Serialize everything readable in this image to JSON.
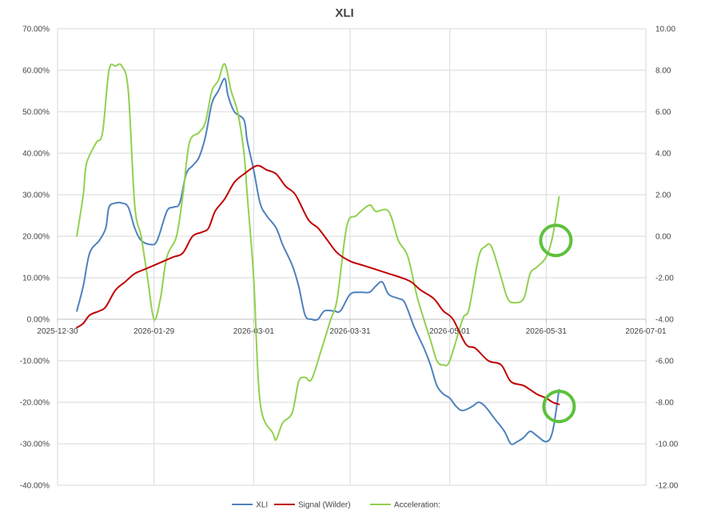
{
  "chart_data": {
    "type": "line",
    "title": "XLI",
    "colors": {
      "XLI": "#4f81bd",
      "Signal (Wilder)": "#c00000",
      "Acceleration:": "#92d050",
      "highlight": "#5cc13c",
      "grid": "#d9d9d9"
    },
    "x_axis": {
      "type": "date",
      "range": [
        "2025-12-30",
        "2026-07-01"
      ],
      "ticks": [
        "2025-12-30",
        "2026-01-29",
        "2026-03-01",
        "2026-03-31",
        "2026-05-01",
        "2026-05-31",
        "2026-07-01"
      ]
    },
    "y_left": {
      "range": [
        -0.4,
        0.7
      ],
      "ticks": [
        "70.00%",
        "60.00%",
        "50.00%",
        "40.00%",
        "30.00%",
        "20.00%",
        "10.00%",
        "0.00%",
        "-10.00%",
        "-20.00%",
        "-30.00%",
        "-40.00%"
      ]
    },
    "y_right": {
      "range": [
        -12,
        10
      ],
      "ticks": [
        "10.00",
        "8.00",
        "6.00",
        "4.00",
        "2.00",
        "0.00",
        "-2.00",
        "-4.00",
        "-6.00",
        "-8.00",
        "-10.00",
        "-12.00"
      ]
    },
    "series": [
      {
        "name": "XLI",
        "axis": "left",
        "points": [
          [
            "2026-01-05",
            0.02
          ],
          [
            "2026-01-07",
            0.08
          ],
          [
            "2026-01-09",
            0.16
          ],
          [
            "2026-01-12",
            0.19
          ],
          [
            "2026-01-14",
            0.22
          ],
          [
            "2026-01-15",
            0.27
          ],
          [
            "2026-01-17",
            0.28
          ],
          [
            "2026-01-19",
            0.28
          ],
          [
            "2026-01-21",
            0.27
          ],
          [
            "2026-01-23",
            0.22
          ],
          [
            "2026-01-25",
            0.19
          ],
          [
            "2026-01-28",
            0.18
          ],
          [
            "2026-01-30",
            0.19
          ],
          [
            "2026-02-02",
            0.26
          ],
          [
            "2026-02-04",
            0.27
          ],
          [
            "2026-02-06",
            0.28
          ],
          [
            "2026-02-08",
            0.35
          ],
          [
            "2026-02-10",
            0.37
          ],
          [
            "2026-02-12",
            0.39
          ],
          [
            "2026-02-14",
            0.44
          ],
          [
            "2026-02-16",
            0.52
          ],
          [
            "2026-02-18",
            0.55
          ],
          [
            "2026-02-20",
            0.58
          ],
          [
            "2026-02-21",
            0.54
          ],
          [
            "2026-02-23",
            0.5
          ],
          [
            "2026-02-26",
            0.48
          ],
          [
            "2026-02-27",
            0.43
          ],
          [
            "2026-03-01",
            0.36
          ],
          [
            "2026-03-03",
            0.28
          ],
          [
            "2026-03-05",
            0.25
          ],
          [
            "2026-03-08",
            0.22
          ],
          [
            "2026-03-10",
            0.18
          ],
          [
            "2026-03-13",
            0.13
          ],
          [
            "2026-03-15",
            0.08
          ],
          [
            "2026-03-17",
            0.01
          ],
          [
            "2026-03-19",
            0.0
          ],
          [
            "2026-03-21",
            0.0
          ],
          [
            "2026-03-23",
            0.02
          ],
          [
            "2026-03-26",
            0.02
          ],
          [
            "2026-03-28",
            0.02
          ],
          [
            "2026-03-31",
            0.06
          ],
          [
            "2026-04-03",
            0.065
          ],
          [
            "2026-04-06",
            0.065
          ],
          [
            "2026-04-08",
            0.08
          ],
          [
            "2026-04-10",
            0.09
          ],
          [
            "2026-04-12",
            0.06
          ],
          [
            "2026-04-15",
            0.05
          ],
          [
            "2026-04-17",
            0.04
          ],
          [
            "2026-04-20",
            -0.02
          ],
          [
            "2026-04-23",
            -0.07
          ],
          [
            "2026-04-25",
            -0.11
          ],
          [
            "2026-04-27",
            -0.16
          ],
          [
            "2026-04-29",
            -0.18
          ],
          [
            "2026-05-01",
            -0.19
          ],
          [
            "2026-05-03",
            -0.21
          ],
          [
            "2026-05-05",
            -0.22
          ],
          [
            "2026-05-08",
            -0.21
          ],
          [
            "2026-05-10",
            -0.2
          ],
          [
            "2026-05-12",
            -0.21
          ],
          [
            "2026-05-15",
            -0.24
          ],
          [
            "2026-05-18",
            -0.27
          ],
          [
            "2026-05-20",
            -0.3
          ],
          [
            "2026-05-22",
            -0.295
          ],
          [
            "2026-05-24",
            -0.285
          ],
          [
            "2026-05-26",
            -0.27
          ],
          [
            "2026-05-28",
            -0.28
          ],
          [
            "2026-05-31",
            -0.295
          ],
          [
            "2026-06-02",
            -0.27
          ],
          [
            "2026-06-04",
            -0.17
          ]
        ]
      },
      {
        "name": "Signal (Wilder)",
        "axis": "left",
        "points": [
          [
            "2026-01-05",
            -0.02
          ],
          [
            "2026-01-07",
            -0.01
          ],
          [
            "2026-01-09",
            0.01
          ],
          [
            "2026-01-12",
            0.02
          ],
          [
            "2026-01-14",
            0.03
          ],
          [
            "2026-01-17",
            0.07
          ],
          [
            "2026-01-20",
            0.09
          ],
          [
            "2026-01-23",
            0.11
          ],
          [
            "2026-01-26",
            0.12
          ],
          [
            "2026-01-29",
            0.13
          ],
          [
            "2026-02-01",
            0.14
          ],
          [
            "2026-02-04",
            0.15
          ],
          [
            "2026-02-07",
            0.16
          ],
          [
            "2026-02-10",
            0.2
          ],
          [
            "2026-02-13",
            0.21
          ],
          [
            "2026-02-15",
            0.22
          ],
          [
            "2026-02-17",
            0.26
          ],
          [
            "2026-02-20",
            0.29
          ],
          [
            "2026-02-23",
            0.33
          ],
          [
            "2026-02-26",
            0.35
          ],
          [
            "2026-03-02",
            0.37
          ],
          [
            "2026-03-05",
            0.36
          ],
          [
            "2026-03-08",
            0.35
          ],
          [
            "2026-03-11",
            0.32
          ],
          [
            "2026-03-14",
            0.3
          ],
          [
            "2026-03-18",
            0.24
          ],
          [
            "2026-03-21",
            0.22
          ],
          [
            "2026-03-24",
            0.19
          ],
          [
            "2026-03-27",
            0.16
          ],
          [
            "2026-03-31",
            0.14
          ],
          [
            "2026-04-04",
            0.13
          ],
          [
            "2026-04-08",
            0.12
          ],
          [
            "2026-04-12",
            0.11
          ],
          [
            "2026-04-16",
            0.1
          ],
          [
            "2026-04-19",
            0.09
          ],
          [
            "2026-04-22",
            0.07
          ],
          [
            "2026-04-26",
            0.05
          ],
          [
            "2026-04-29",
            0.02
          ],
          [
            "2026-05-02",
            0.0
          ],
          [
            "2026-05-06",
            -0.06
          ],
          [
            "2026-05-09",
            -0.07
          ],
          [
            "2026-05-13",
            -0.1
          ],
          [
            "2026-05-17",
            -0.11
          ],
          [
            "2026-05-20",
            -0.15
          ],
          [
            "2026-05-24",
            -0.16
          ],
          [
            "2026-05-28",
            -0.18
          ],
          [
            "2026-05-31",
            -0.19
          ],
          [
            "2026-06-02",
            -0.2
          ],
          [
            "2026-06-04",
            -0.205
          ]
        ]
      },
      {
        "name": "Acceleration:",
        "axis": "right",
        "points": [
          [
            "2026-01-05",
            0.0
          ],
          [
            "2026-01-07",
            2.0
          ],
          [
            "2026-01-08",
            3.5
          ],
          [
            "2026-01-11",
            4.5
          ],
          [
            "2026-01-13",
            5.0
          ],
          [
            "2026-01-15",
            8.0
          ],
          [
            "2026-01-17",
            8.2
          ],
          [
            "2026-01-19",
            8.2
          ],
          [
            "2026-01-21",
            7.0
          ],
          [
            "2026-01-23",
            1.5
          ],
          [
            "2026-01-25",
            0.0
          ],
          [
            "2026-01-27",
            -2.0
          ],
          [
            "2026-01-29",
            -4.0
          ],
          [
            "2026-01-31",
            -3.0
          ],
          [
            "2026-02-02",
            -1.0
          ],
          [
            "2026-02-05",
            0.0
          ],
          [
            "2026-02-07",
            2.0
          ],
          [
            "2026-02-09",
            4.5
          ],
          [
            "2026-02-12",
            5.0
          ],
          [
            "2026-02-14",
            5.5
          ],
          [
            "2026-02-16",
            7.0
          ],
          [
            "2026-02-18",
            7.5
          ],
          [
            "2026-02-20",
            8.3
          ],
          [
            "2026-02-22",
            7.0
          ],
          [
            "2026-02-24",
            6.0
          ],
          [
            "2026-02-26",
            4.0
          ],
          [
            "2026-02-27",
            2.0
          ],
          [
            "2026-03-01",
            -2.0
          ],
          [
            "2026-03-03",
            -8.0
          ],
          [
            "2026-03-07",
            -9.5
          ],
          [
            "2026-03-08",
            -9.8
          ],
          [
            "2026-03-10",
            -9.0
          ],
          [
            "2026-03-13",
            -8.5
          ],
          [
            "2026-03-15",
            -7.0
          ],
          [
            "2026-03-17",
            -6.8
          ],
          [
            "2026-03-19",
            -6.9
          ],
          [
            "2026-03-22",
            -5.5
          ],
          [
            "2026-03-25",
            -4.0
          ],
          [
            "2026-03-27",
            -3.0
          ],
          [
            "2026-03-30",
            0.5
          ],
          [
            "2026-04-02",
            1.0
          ],
          [
            "2026-04-06",
            1.5
          ],
          [
            "2026-04-08",
            1.2
          ],
          [
            "2026-04-12",
            1.2
          ],
          [
            "2026-04-15",
            -0.2
          ],
          [
            "2026-04-18",
            -1.0
          ],
          [
            "2026-04-21",
            -3.0
          ],
          [
            "2026-04-25",
            -5.0
          ],
          [
            "2026-04-27",
            -6.0
          ],
          [
            "2026-04-29",
            -6.2
          ],
          [
            "2026-05-01",
            -6.0
          ],
          [
            "2026-05-05",
            -4.0
          ],
          [
            "2026-05-07",
            -3.5
          ],
          [
            "2026-05-10",
            -1.0
          ],
          [
            "2026-05-12",
            -0.5
          ],
          [
            "2026-05-14",
            -0.5
          ],
          [
            "2026-05-17",
            -2.0
          ],
          [
            "2026-05-19",
            -3.0
          ],
          [
            "2026-05-21",
            -3.2
          ],
          [
            "2026-05-24",
            -3.0
          ],
          [
            "2026-05-26",
            -1.8
          ],
          [
            "2026-05-28",
            -1.5
          ],
          [
            "2026-05-31",
            -1.0
          ],
          [
            "2026-06-02",
            0.0
          ],
          [
            "2026-06-04",
            1.9
          ]
        ]
      }
    ],
    "annotations": [
      {
        "type": "circle",
        "date": "2026-06-03",
        "axis": "right",
        "value": -0.2
      },
      {
        "type": "circle",
        "date": "2026-06-04",
        "axis": "left",
        "value": -0.21
      }
    ],
    "legend": {
      "position": "bottom",
      "items": [
        "XLI",
        "Signal (Wilder)",
        "Acceleration:"
      ]
    },
    "grid": true
  }
}
